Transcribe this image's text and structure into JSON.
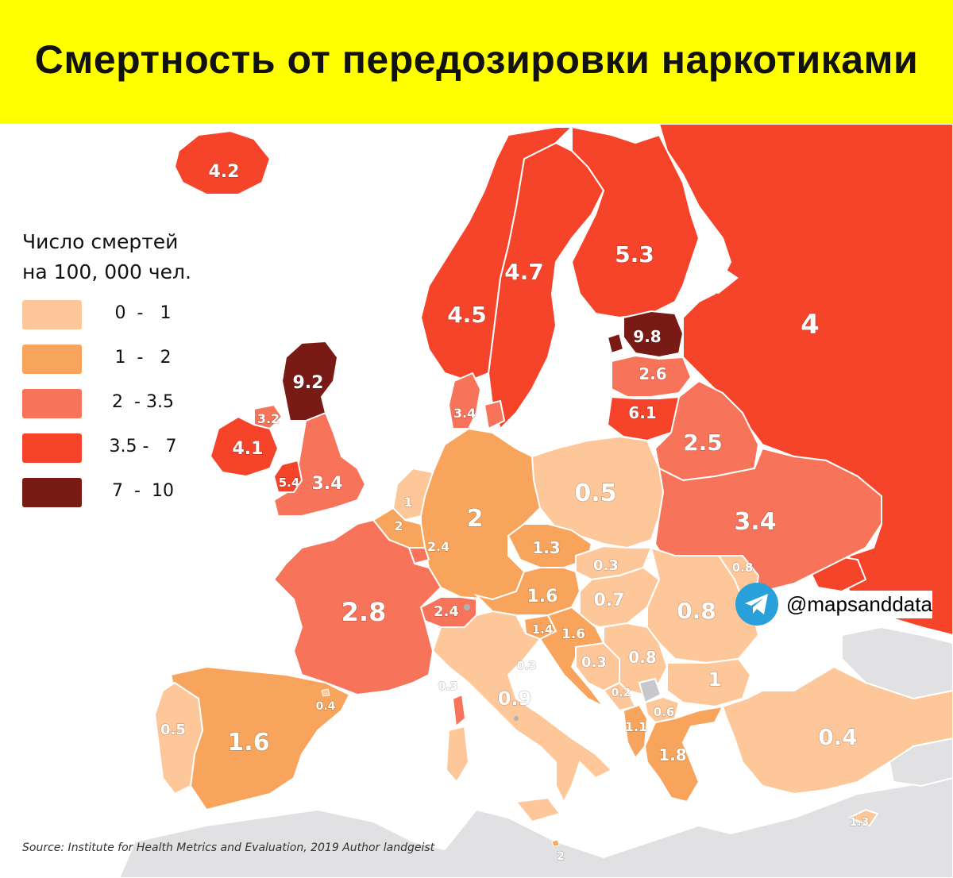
{
  "title": "Смертность от передозировки наркотиками",
  "legend": {
    "title_line1": "Число смертей",
    "title_line2": "на 100, 000 чел.",
    "items": [
      {
        "range": "0  -   1",
        "color": "#fdc79a"
      },
      {
        "range": "1  -   2",
        "color": "#f8a45c"
      },
      {
        "range": "2  - 3.5",
        "color": "#f7735a"
      },
      {
        "range": "3.5 -   7",
        "color": "#f6442a"
      },
      {
        "range": "7  -  10",
        "color": "#7a1a14"
      }
    ]
  },
  "labels": [
    {
      "id": "iceland",
      "value": "4.2"
    },
    {
      "id": "scotland",
      "value": "9.2"
    },
    {
      "id": "northern-ireland",
      "value": "3.2"
    },
    {
      "id": "ireland",
      "value": "4.1"
    },
    {
      "id": "wales",
      "value": "5.4"
    },
    {
      "id": "england",
      "value": "3.4"
    },
    {
      "id": "norway",
      "value": "4.5"
    },
    {
      "id": "sweden",
      "value": "4.7"
    },
    {
      "id": "finland",
      "value": "5.3"
    },
    {
      "id": "russia",
      "value": "4"
    },
    {
      "id": "estonia",
      "value": "9.8"
    },
    {
      "id": "latvia",
      "value": "2.6"
    },
    {
      "id": "lithuania",
      "value": "6.1"
    },
    {
      "id": "belarus",
      "value": "2.5"
    },
    {
      "id": "denmark",
      "value": "3.4"
    },
    {
      "id": "netherlands",
      "value": "1"
    },
    {
      "id": "belgium",
      "value": "2"
    },
    {
      "id": "luxembourg",
      "value": "2.4"
    },
    {
      "id": "germany",
      "value": "2"
    },
    {
      "id": "poland",
      "value": "0.5"
    },
    {
      "id": "ukraine",
      "value": "3.4"
    },
    {
      "id": "czechia",
      "value": "1.3"
    },
    {
      "id": "slovakia",
      "value": "0.3"
    },
    {
      "id": "moldova",
      "value": "0.8"
    },
    {
      "id": "austria",
      "value": "1.6"
    },
    {
      "id": "hungary",
      "value": "0.7"
    },
    {
      "id": "romania",
      "value": "0.8"
    },
    {
      "id": "france",
      "value": "2.8"
    },
    {
      "id": "switzerland",
      "value": "2.4"
    },
    {
      "id": "slovenia",
      "value": "1.4"
    },
    {
      "id": "croatia",
      "value": "1.6"
    },
    {
      "id": "bosnia",
      "value": "0.3"
    },
    {
      "id": "serbia",
      "value": "0.8"
    },
    {
      "id": "bulgaria",
      "value": "1"
    },
    {
      "id": "san-marino",
      "value": "0.3"
    },
    {
      "id": "monaco",
      "value": "0.3"
    },
    {
      "id": "italy",
      "value": "0.9"
    },
    {
      "id": "montenegro",
      "value": "0.2"
    },
    {
      "id": "north-macedonia",
      "value": "0.6"
    },
    {
      "id": "albania",
      "value": "1.1"
    },
    {
      "id": "greece",
      "value": "1.8"
    },
    {
      "id": "turkey",
      "value": "0.4"
    },
    {
      "id": "andorra",
      "value": "0.4"
    },
    {
      "id": "portugal",
      "value": "0.5"
    },
    {
      "id": "spain",
      "value": "1.6"
    },
    {
      "id": "cyprus",
      "value": "1.3"
    },
    {
      "id": "malta",
      "value": "2"
    }
  ],
  "source": "Source: Institute for Health Metrics and Evaluation, 2019  Author landgeist",
  "telegram_handle": "@mapsanddata"
}
